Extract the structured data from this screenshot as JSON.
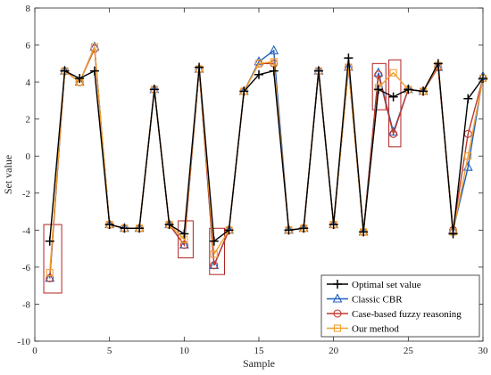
{
  "chart_data": {
    "type": "line",
    "xlabel": "Sample",
    "ylabel": "Set value",
    "xlim": [
      0,
      30
    ],
    "ylim": [
      -10,
      8
    ],
    "xticks": [
      0,
      5,
      10,
      15,
      20,
      25,
      30
    ],
    "yticks": [
      -10,
      -8,
      -6,
      -4,
      -2,
      0,
      2,
      4,
      6,
      8
    ],
    "grid": false,
    "legend_position": "bottom-right",
    "x": [
      1,
      2,
      3,
      4,
      5,
      6,
      7,
      8,
      9,
      10,
      11,
      12,
      13,
      14,
      15,
      16,
      17,
      18,
      19,
      20,
      21,
      22,
      23,
      24,
      25,
      26,
      27,
      28,
      29,
      30
    ],
    "series": [
      {
        "name": "Optimal set value",
        "color": "#000000",
        "marker": "plus",
        "values": [
          -4.6,
          4.6,
          4.2,
          4.6,
          -3.7,
          -3.9,
          -3.9,
          3.6,
          -3.7,
          -4.2,
          4.8,
          -4.6,
          -4.0,
          3.5,
          4.4,
          4.6,
          -4.0,
          -3.9,
          4.6,
          -3.7,
          5.3,
          -4.1,
          3.6,
          3.2,
          3.6,
          3.5,
          5.0,
          -4.2,
          3.1,
          4.2
        ]
      },
      {
        "name": "Classic CBR",
        "color": "#1f5fbf",
        "marker": "triangle",
        "values": [
          -6.6,
          4.6,
          4.0,
          5.9,
          -3.7,
          -3.9,
          -3.9,
          3.6,
          -3.7,
          -4.8,
          4.7,
          -5.9,
          -4.0,
          3.5,
          5.1,
          5.7,
          -4.0,
          -3.9,
          4.6,
          -3.7,
          4.8,
          -4.1,
          4.5,
          1.3,
          3.6,
          3.5,
          4.8,
          -4.0,
          -0.6,
          4.3
        ]
      },
      {
        "name": "Case-based fuzzy reasoning",
        "color": "#c0392b",
        "marker": "circle",
        "values": [
          -6.6,
          4.6,
          4.0,
          5.8,
          -3.7,
          -3.9,
          -3.9,
          3.6,
          -3.7,
          -4.8,
          4.7,
          -5.9,
          -4.0,
          3.5,
          5.0,
          5.0,
          -4.0,
          -3.9,
          4.6,
          -3.7,
          4.8,
          -4.1,
          4.4,
          1.2,
          3.6,
          3.5,
          4.8,
          -4.0,
          1.2,
          4.2
        ]
      },
      {
        "name": "Our method",
        "color": "#f0a030",
        "marker": "square",
        "values": [
          -6.3,
          4.6,
          4.0,
          5.9,
          -3.7,
          -3.9,
          -3.9,
          3.6,
          -3.7,
          -4.5,
          4.7,
          -5.3,
          -4.0,
          3.5,
          5.0,
          5.1,
          -4.0,
          -3.9,
          4.6,
          -3.7,
          4.8,
          -4.1,
          3.7,
          4.5,
          3.6,
          3.5,
          4.9,
          -4.1,
          0.0,
          4.2
        ]
      }
    ],
    "highlight_boxes": [
      {
        "x": [
          0.6,
          1.8
        ],
        "y": [
          -7.4,
          -3.7
        ]
      },
      {
        "x": [
          9.6,
          10.6
        ],
        "y": [
          -5.5,
          -3.5
        ]
      },
      {
        "x": [
          11.7,
          12.7
        ],
        "y": [
          -6.4,
          -3.9
        ]
      },
      {
        "x": [
          22.6,
          23.5
        ],
        "y": [
          2.5,
          5.0
        ]
      },
      {
        "x": [
          23.7,
          24.5
        ],
        "y": [
          0.5,
          5.2
        ]
      }
    ]
  }
}
